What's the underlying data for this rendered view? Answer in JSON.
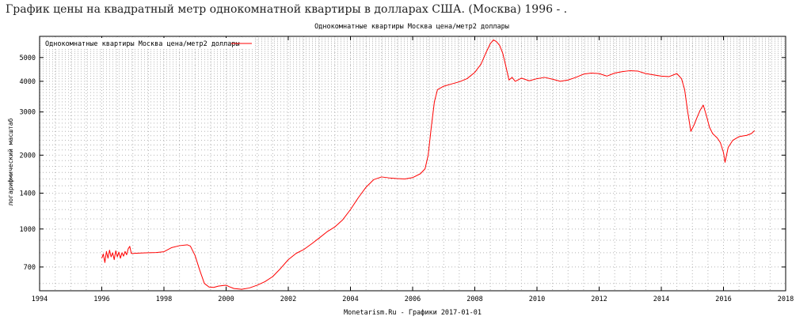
{
  "page": {
    "heading": "График цены на квадратный метр однокомнатной квартиры в долларах США. (Москва) 1996 - ."
  },
  "chart_data": {
    "type": "line",
    "title": "Однокомнатные квартиры Москва цена/метр2 доллары",
    "ylabel": "логарифмический масштаб",
    "xlabel": "",
    "footer": "Monetarism.Ru - Графики  2017-01-01",
    "y_scale": "log",
    "xlim": [
      1994,
      2018
    ],
    "ylim": [
      560,
      6100
    ],
    "grid": true,
    "legend_position": "top-left",
    "x_ticks": [
      1994,
      1996,
      1998,
      2000,
      2002,
      2004,
      2006,
      2008,
      2010,
      2012,
      2014,
      2016,
      2018
    ],
    "y_ticks": [
      700,
      1000,
      1400,
      2000,
      3000,
      4000,
      5000
    ],
    "series": [
      {
        "name": "Однокомнатные квартиры Москва цена/метр2 доллары",
        "color": "#ff0000",
        "points": [
          [
            1996.0,
            760
          ],
          [
            1996.05,
            790
          ],
          [
            1996.1,
            730
          ],
          [
            1996.15,
            810
          ],
          [
            1996.2,
            760
          ],
          [
            1996.25,
            820
          ],
          [
            1996.3,
            770
          ],
          [
            1996.35,
            800
          ],
          [
            1996.4,
            750
          ],
          [
            1996.45,
            815
          ],
          [
            1996.5,
            770
          ],
          [
            1996.55,
            805
          ],
          [
            1996.6,
            760
          ],
          [
            1996.65,
            800
          ],
          [
            1996.7,
            775
          ],
          [
            1996.75,
            810
          ],
          [
            1996.8,
            785
          ],
          [
            1996.85,
            830
          ],
          [
            1996.9,
            850
          ],
          [
            1996.95,
            795
          ],
          [
            1997.0,
            795
          ],
          [
            1997.25,
            798
          ],
          [
            1997.5,
            800
          ],
          [
            1997.75,
            802
          ],
          [
            1998.0,
            808
          ],
          [
            1998.25,
            840
          ],
          [
            1998.5,
            855
          ],
          [
            1998.75,
            862
          ],
          [
            1998.85,
            852
          ],
          [
            1999.0,
            780
          ],
          [
            1999.15,
            680
          ],
          [
            1999.3,
            600
          ],
          [
            1999.45,
            580
          ],
          [
            1999.6,
            578
          ],
          [
            1999.75,
            585
          ],
          [
            1999.9,
            588
          ],
          [
            2000.0,
            590
          ],
          [
            2000.1,
            582
          ],
          [
            2000.25,
            572
          ],
          [
            2000.5,
            568
          ],
          [
            2000.75,
            575
          ],
          [
            2001.0,
            590
          ],
          [
            2001.25,
            610
          ],
          [
            2001.5,
            640
          ],
          [
            2001.75,
            690
          ],
          [
            2002.0,
            750
          ],
          [
            2002.25,
            795
          ],
          [
            2002.5,
            825
          ],
          [
            2002.75,
            870
          ],
          [
            2003.0,
            920
          ],
          [
            2003.25,
            975
          ],
          [
            2003.5,
            1020
          ],
          [
            2003.75,
            1090
          ],
          [
            2004.0,
            1200
          ],
          [
            2004.25,
            1340
          ],
          [
            2004.5,
            1480
          ],
          [
            2004.75,
            1590
          ],
          [
            2005.0,
            1630
          ],
          [
            2005.25,
            1615
          ],
          [
            2005.5,
            1605
          ],
          [
            2005.75,
            1600
          ],
          [
            2006.0,
            1620
          ],
          [
            2006.25,
            1680
          ],
          [
            2006.4,
            1760
          ],
          [
            2006.5,
            2000
          ],
          [
            2006.6,
            2600
          ],
          [
            2006.7,
            3300
          ],
          [
            2006.8,
            3700
          ],
          [
            2007.0,
            3820
          ],
          [
            2007.25,
            3900
          ],
          [
            2007.5,
            3980
          ],
          [
            2007.75,
            4100
          ],
          [
            2008.0,
            4350
          ],
          [
            2008.2,
            4700
          ],
          [
            2008.35,
            5200
          ],
          [
            2008.5,
            5700
          ],
          [
            2008.6,
            5900
          ],
          [
            2008.7,
            5800
          ],
          [
            2008.8,
            5600
          ],
          [
            2008.9,
            5200
          ],
          [
            2009.0,
            4600
          ],
          [
            2009.1,
            4050
          ],
          [
            2009.2,
            4150
          ],
          [
            2009.3,
            4000
          ],
          [
            2009.5,
            4120
          ],
          [
            2009.75,
            4020
          ],
          [
            2010.0,
            4100
          ],
          [
            2010.25,
            4150
          ],
          [
            2010.5,
            4080
          ],
          [
            2010.75,
            4000
          ],
          [
            2011.0,
            4050
          ],
          [
            2011.25,
            4150
          ],
          [
            2011.5,
            4280
          ],
          [
            2011.75,
            4320
          ],
          [
            2012.0,
            4300
          ],
          [
            2012.25,
            4200
          ],
          [
            2012.5,
            4320
          ],
          [
            2012.75,
            4380
          ],
          [
            2013.0,
            4420
          ],
          [
            2013.25,
            4400
          ],
          [
            2013.5,
            4300
          ],
          [
            2013.75,
            4250
          ],
          [
            2014.0,
            4200
          ],
          [
            2014.25,
            4180
          ],
          [
            2014.5,
            4300
          ],
          [
            2014.65,
            4100
          ],
          [
            2014.75,
            3700
          ],
          [
            2014.85,
            3000
          ],
          [
            2014.95,
            2500
          ],
          [
            2015.05,
            2650
          ],
          [
            2015.15,
            2850
          ],
          [
            2015.25,
            3050
          ],
          [
            2015.35,
            3200
          ],
          [
            2015.45,
            2900
          ],
          [
            2015.55,
            2600
          ],
          [
            2015.65,
            2450
          ],
          [
            2015.8,
            2350
          ],
          [
            2015.9,
            2250
          ],
          [
            2016.0,
            2050
          ],
          [
            2016.05,
            1870
          ],
          [
            2016.15,
            2150
          ],
          [
            2016.3,
            2300
          ],
          [
            2016.5,
            2380
          ],
          [
            2016.75,
            2410
          ],
          [
            2016.9,
            2450
          ],
          [
            2017.0,
            2520
          ]
        ]
      }
    ]
  }
}
